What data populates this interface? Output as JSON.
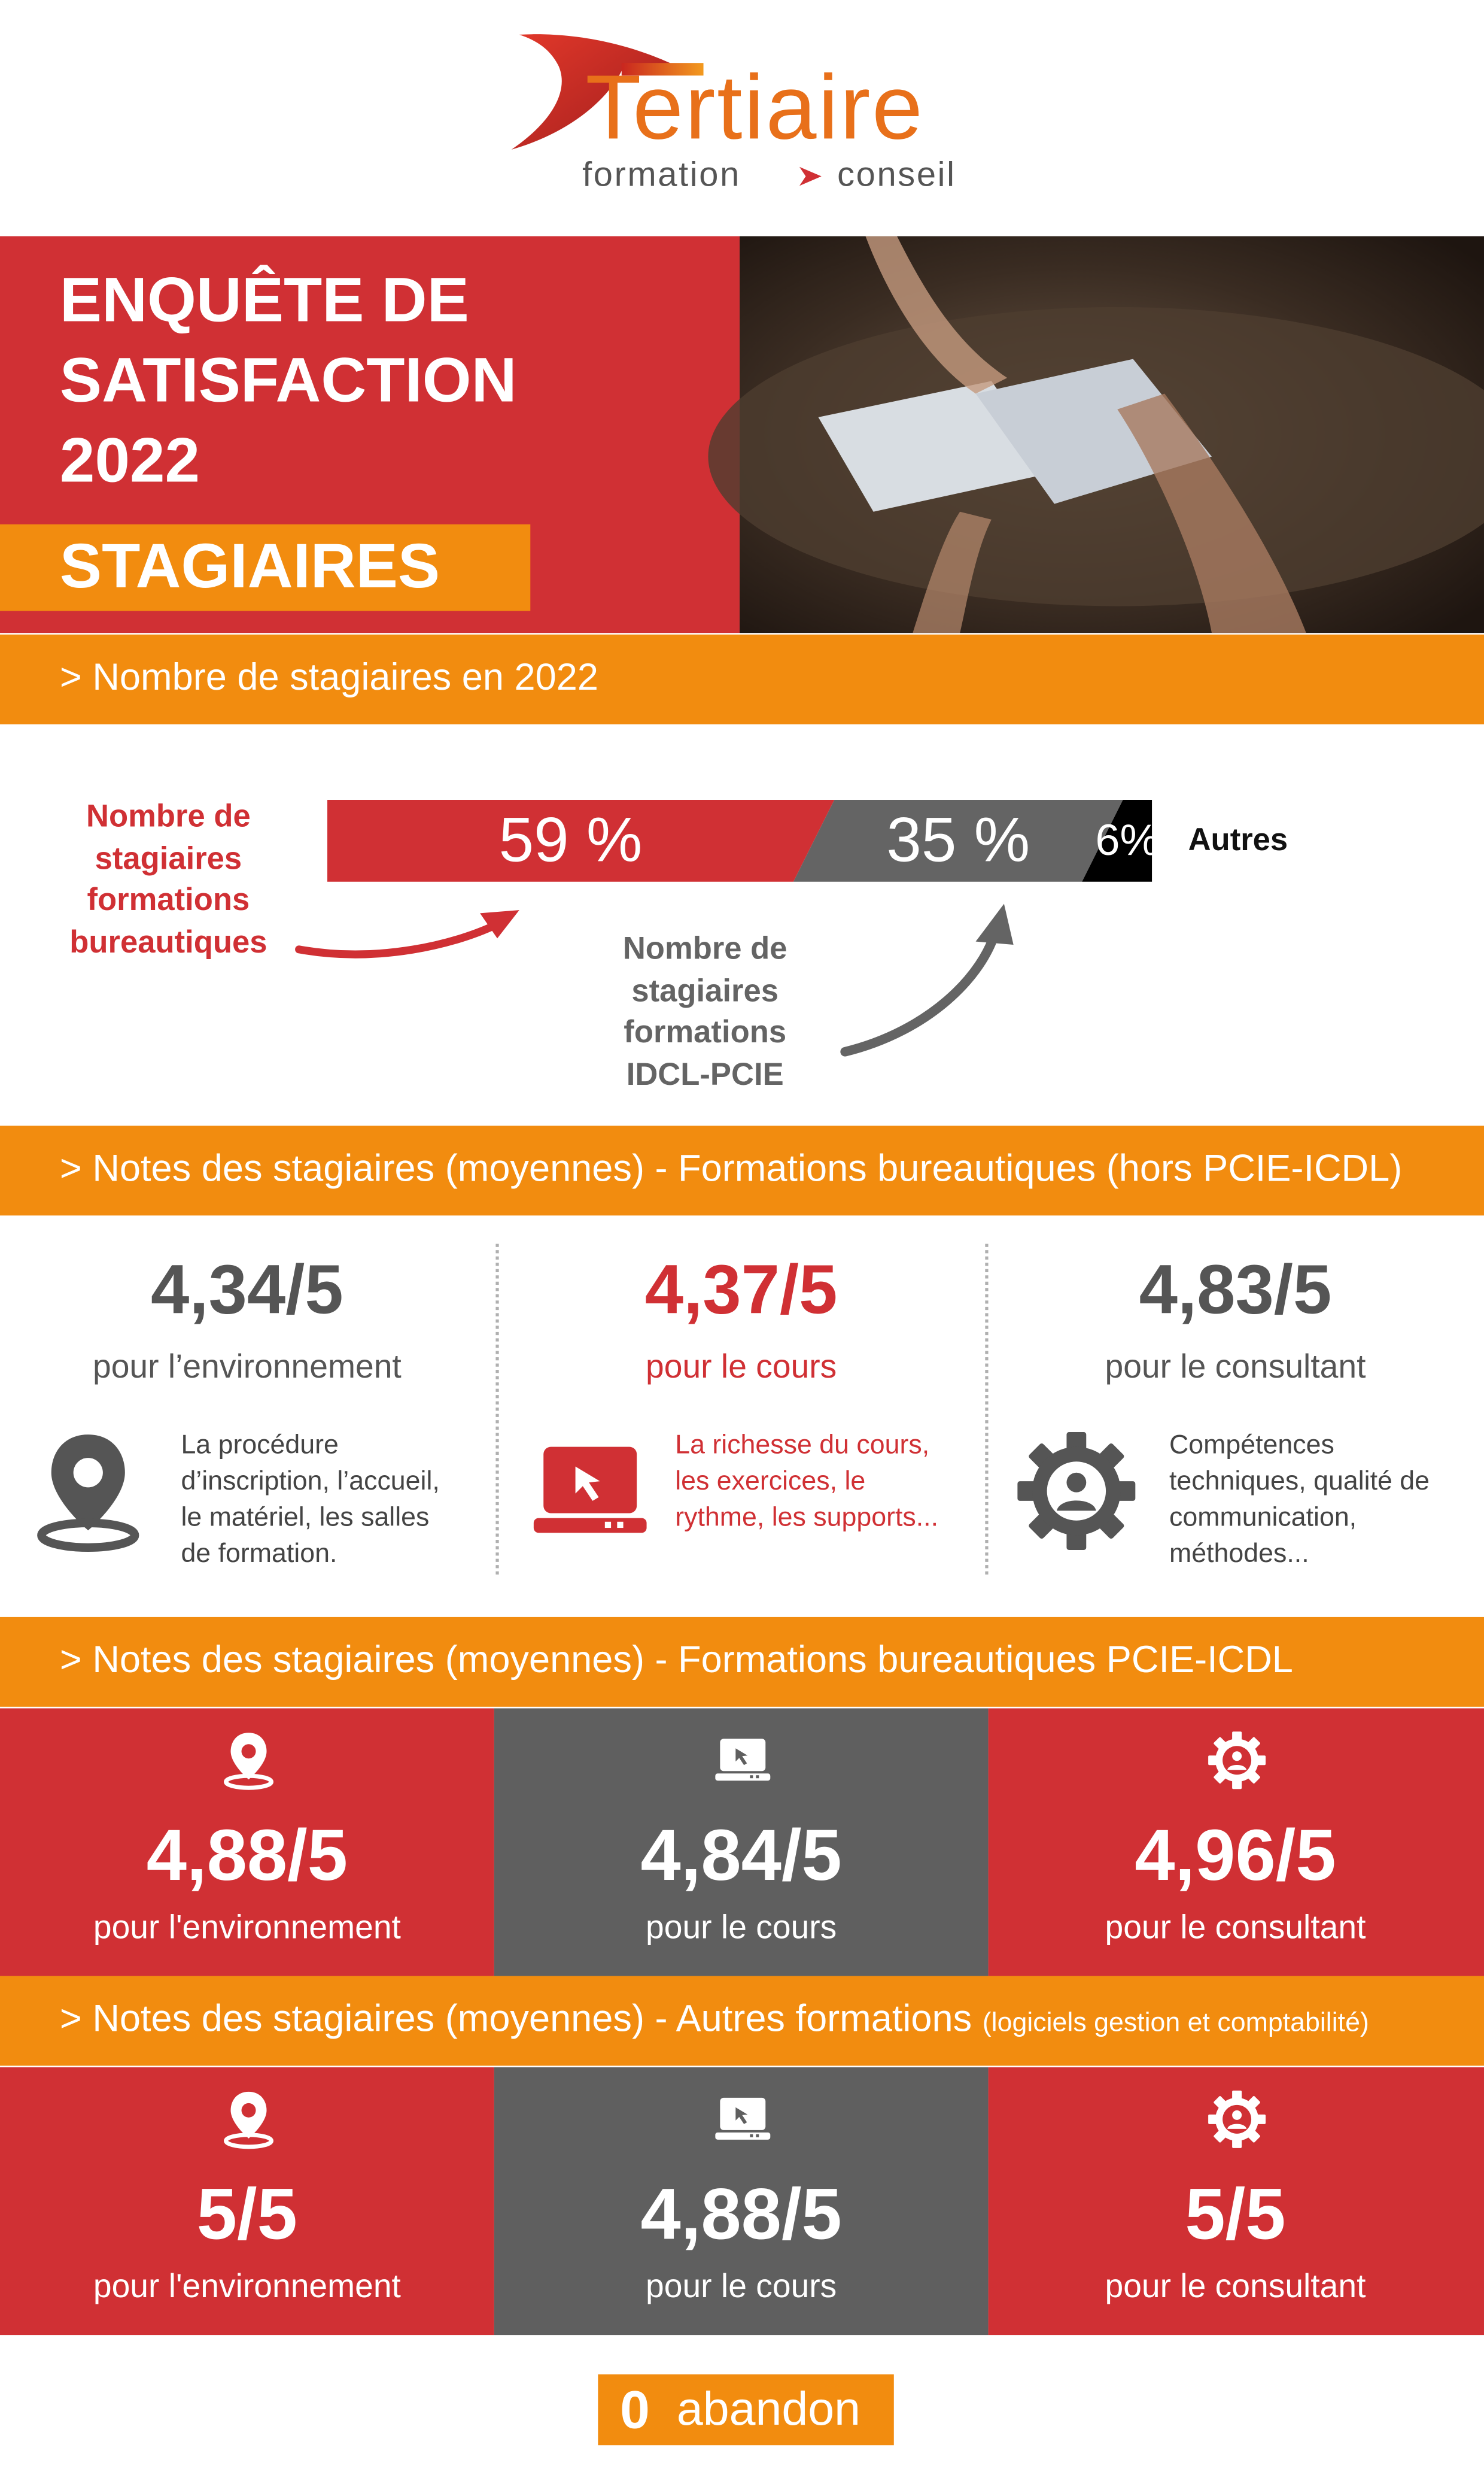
{
  "logo": {
    "brand": "Tertiaire",
    "tagline_left": "formation",
    "tagline_right": "conseil"
  },
  "header": {
    "title": "ENQUÊTE DE SATISFACTION 2022",
    "subtitle": "STAGIAIRES"
  },
  "chart_data": {
    "type": "stacked-bar",
    "title": "> Nombre de stagiaires en 2022",
    "categories": [
      "Nombre de stagiaires formations bureautiques",
      "Nombre de stagiaires formations IDCL-PCIE",
      "Autres"
    ],
    "values": [
      59,
      35,
      6
    ],
    "value_labels": [
      "59 %",
      "35 %",
      "6%"
    ],
    "colors": [
      "#d03034",
      "#646464",
      "#000000"
    ],
    "xlim": [
      0,
      100
    ]
  },
  "sections": [
    {
      "heading": "> Notes des stagiaires (moyennes) - Formations bureautiques (hors PCIE-ICDL)",
      "ratings": [
        {
          "score": "4,34/5",
          "label": "pour l’environnement",
          "description": "La procédure d’inscription, l’accueil, le matériel, les salles de formation."
        },
        {
          "score": "4,37/5",
          "label": "pour le cours",
          "description": "La richesse du cours, les exercices, le rythme, les supports..."
        },
        {
          "score": "4,83/5",
          "label": "pour le consultant",
          "description": "Compétences techniques, qualité de communication, méthodes..."
        }
      ]
    },
    {
      "heading": "> Notes des stagiaires (moyennes) - Formations bureautiques PCIE-ICDL",
      "ratings": [
        {
          "score": "4,88/5",
          "label": "pour l'environnement"
        },
        {
          "score": "4,84/5",
          "label": "pour le cours"
        },
        {
          "score": "4,96/5",
          "label": "pour le consultant"
        }
      ]
    },
    {
      "heading": "> Notes des stagiaires (moyennes) - Autres formations",
      "note": "(logiciels gestion et comptabilité)",
      "ratings": [
        {
          "score": "5/5",
          "label": "pour l'environnement"
        },
        {
          "score": "4,88/5",
          "label": "pour le cours"
        },
        {
          "score": "5/5",
          "label": "pour le consultant"
        }
      ]
    }
  ],
  "footer": {
    "count": 0,
    "label": "abandon"
  }
}
